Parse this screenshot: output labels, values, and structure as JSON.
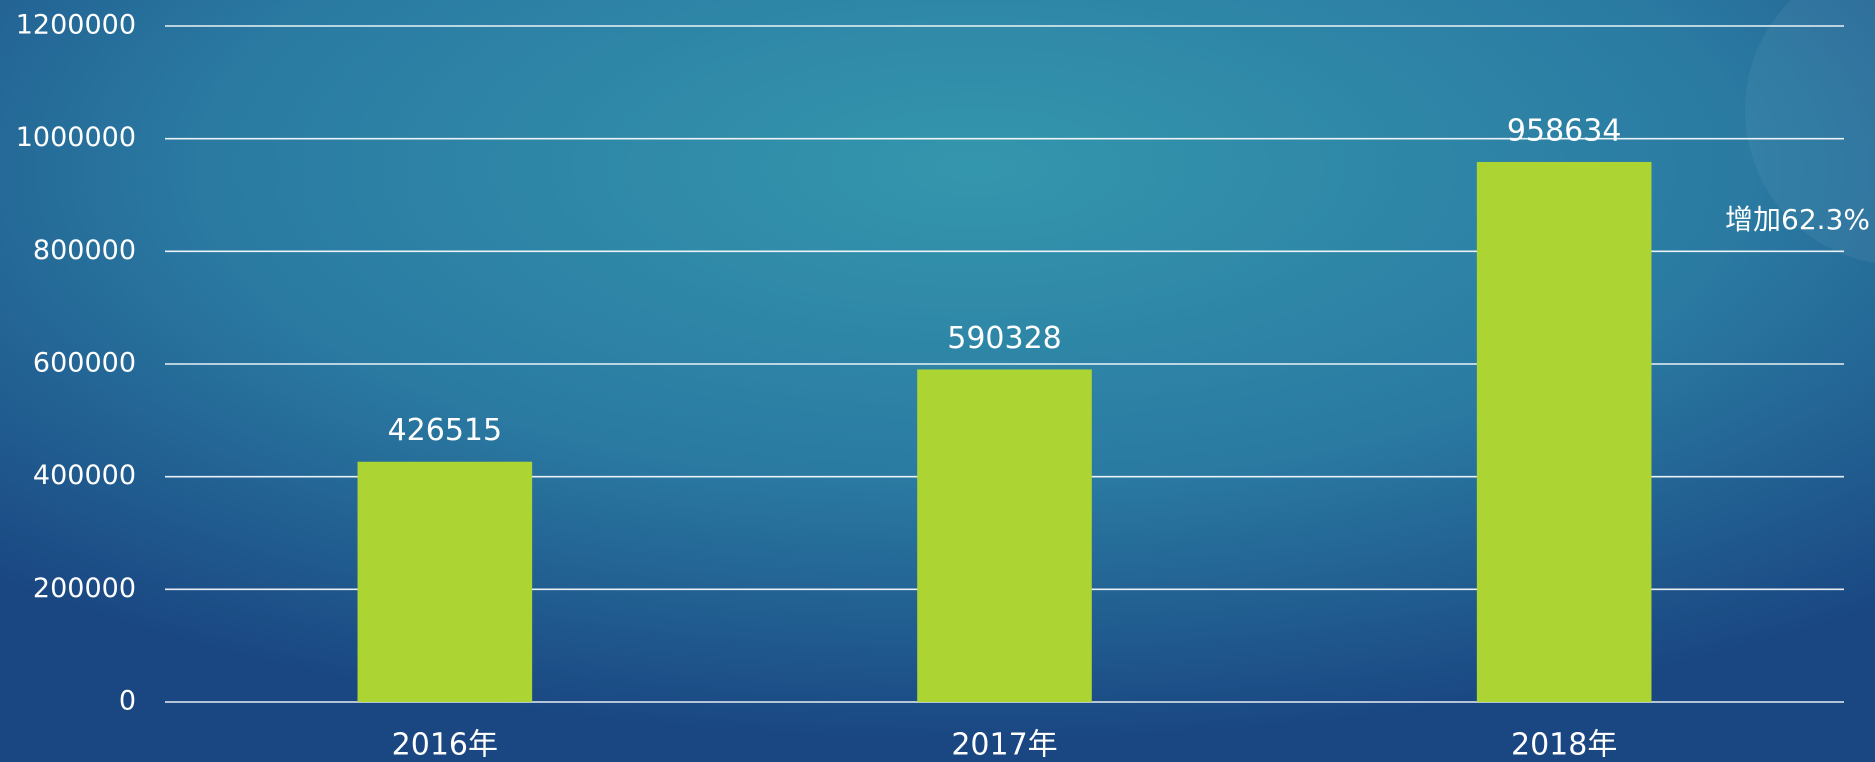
{
  "chart_data": {
    "type": "bar",
    "categories": [
      "2016年",
      "2017年",
      "2018年"
    ],
    "values": [
      426515,
      590328,
      958634
    ],
    "color": "#acd433",
    "ylim": [
      0,
      1200000
    ],
    "yticks": [
      0,
      200000,
      400000,
      600000,
      800000,
      1000000,
      1200000
    ],
    "grid": true,
    "annotation": "增加62.3%"
  }
}
